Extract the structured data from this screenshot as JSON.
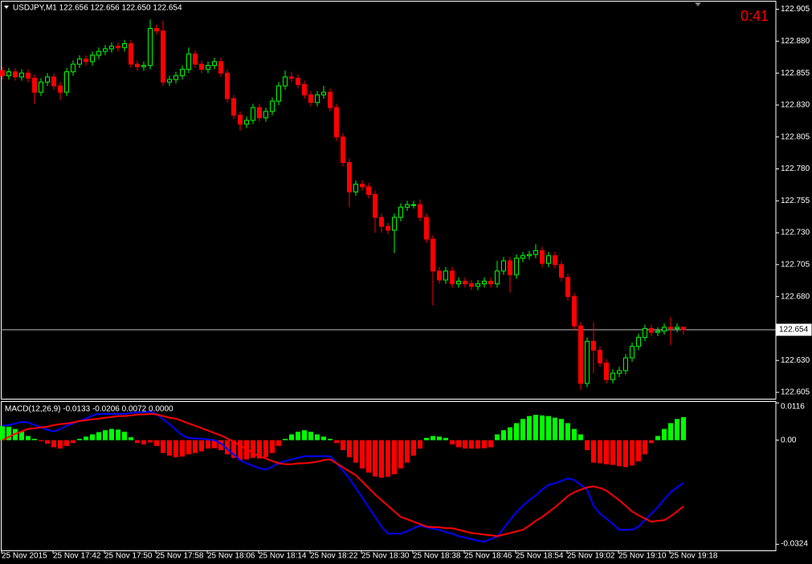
{
  "chart_data": [
    {
      "type": "candlestick",
      "title": "USDJPY,M1  122.656 122.656 122.650 122.654",
      "timer": "0:41",
      "up_color": "#00ff00",
      "down_color": "#ff0000",
      "bid_line_color": "#c0c0c0",
      "ylim": [
        122.6,
        122.911
      ],
      "yticks": [
        122.905,
        {
          "value": 122.88,
          "label": "122.880"
        },
        122.855,
        {
          "value": 122.83,
          "label": "122.830"
        },
        122.805,
        {
          "value": 122.78,
          "label": "122.780"
        },
        122.755,
        {
          "value": 122.73,
          "label": "122.730"
        },
        122.705,
        {
          "value": 122.68,
          "label": "122.680"
        },
        {
          "value": 122.63,
          "label": "122.630"
        },
        122.605
      ],
      "bid": 122.654,
      "open": [
        122.857,
        122.853,
        122.856,
        122.852,
        122.855,
        122.851,
        122.84,
        122.848,
        122.852,
        122.845,
        122.84,
        122.856,
        122.862,
        122.866,
        122.864,
        122.869,
        122.872,
        122.874,
        122.876,
        122.875,
        122.878,
        122.862,
        122.86,
        122.861,
        122.89,
        122.888,
        122.848,
        122.85,
        122.853,
        122.858,
        122.87,
        122.862,
        122.858,
        122.861,
        122.864,
        122.855,
        122.835,
        122.822,
        122.815,
        122.818,
        122.828,
        122.82,
        122.825,
        122.833,
        122.845,
        122.852,
        122.851,
        122.846,
        122.838,
        122.832,
        122.838,
        122.84,
        122.828,
        122.805,
        122.785,
        122.762,
        122.768,
        122.766,
        122.76,
        122.742,
        122.735,
        122.732,
        122.742,
        122.75,
        122.752,
        122.752,
        122.742,
        122.725,
        122.7,
        122.693,
        122.7,
        122.69,
        122.692,
        122.69,
        122.688,
        122.69,
        122.692,
        122.69,
        122.7,
        122.708,
        122.697,
        122.71,
        122.712,
        122.713,
        122.716,
        122.706,
        122.712,
        122.705,
        122.695,
        122.68,
        122.657,
        122.612,
        122.645,
        122.638,
        122.628,
        122.615,
        122.62,
        122.622,
        122.632,
        122.641,
        122.648,
        122.655,
        122.652,
        122.653,
        122.656,
        122.655,
        122.656
      ],
      "high": [
        122.86,
        122.859,
        122.859,
        122.858,
        122.858,
        122.854,
        122.851,
        122.855,
        122.855,
        122.848,
        122.859,
        122.865,
        122.869,
        122.869,
        122.872,
        122.875,
        122.877,
        122.879,
        122.879,
        122.881,
        122.881,
        122.865,
        122.864,
        122.897,
        122.893,
        122.896,
        122.853,
        122.856,
        122.861,
        122.875,
        122.873,
        122.865,
        122.864,
        122.867,
        122.867,
        122.858,
        122.838,
        122.825,
        122.821,
        122.831,
        122.831,
        122.828,
        122.836,
        122.848,
        122.857,
        122.856,
        122.854,
        122.849,
        122.841,
        122.841,
        122.845,
        122.843,
        122.831,
        122.808,
        122.788,
        122.771,
        122.771,
        122.769,
        122.763,
        122.745,
        122.738,
        122.745,
        122.753,
        122.755,
        122.755,
        122.756,
        122.745,
        122.728,
        122.703,
        122.703,
        122.703,
        122.695,
        122.695,
        122.693,
        122.693,
        122.695,
        122.695,
        122.708,
        122.711,
        122.711,
        122.713,
        122.715,
        122.716,
        122.721,
        122.719,
        122.715,
        122.715,
        122.708,
        122.698,
        122.683,
        122.66,
        122.648,
        122.66,
        122.641,
        122.631,
        122.623,
        122.625,
        122.635,
        122.644,
        122.651,
        122.658,
        122.658,
        122.656,
        122.659,
        122.664,
        122.659,
        122.656
      ],
      "low": [
        122.85,
        122.85,
        122.849,
        122.849,
        122.848,
        122.831,
        122.837,
        122.845,
        122.842,
        122.834,
        122.837,
        122.853,
        122.859,
        122.861,
        122.861,
        122.866,
        122.869,
        122.871,
        122.872,
        122.872,
        122.859,
        122.857,
        122.857,
        122.858,
        122.885,
        122.845,
        122.845,
        122.847,
        122.85,
        122.855,
        122.859,
        122.855,
        122.855,
        122.858,
        122.852,
        122.832,
        122.819,
        122.81,
        122.812,
        122.815,
        122.817,
        122.817,
        122.822,
        122.83,
        122.842,
        122.848,
        122.843,
        122.835,
        122.829,
        122.829,
        122.835,
        122.825,
        122.802,
        122.782,
        122.75,
        122.759,
        122.763,
        122.757,
        122.73,
        122.73,
        122.729,
        122.714,
        122.739,
        122.747,
        122.749,
        122.739,
        122.722,
        122.673,
        122.69,
        122.69,
        122.687,
        122.687,
        122.687,
        122.685,
        122.685,
        122.687,
        122.687,
        122.687,
        122.697,
        122.683,
        122.694,
        122.707,
        122.709,
        122.71,
        122.703,
        122.703,
        122.702,
        122.692,
        122.677,
        122.654,
        122.607,
        122.609,
        122.62,
        122.625,
        122.612,
        122.612,
        122.617,
        122.619,
        122.629,
        122.638,
        122.645,
        122.649,
        122.649,
        122.65,
        122.642,
        122.652,
        122.65
      ],
      "close": [
        122.853,
        122.856,
        122.852,
        122.855,
        122.851,
        122.84,
        122.848,
        122.852,
        122.845,
        122.84,
        122.856,
        122.862,
        122.866,
        122.864,
        122.869,
        122.872,
        122.874,
        122.876,
        122.875,
        122.878,
        122.862,
        122.86,
        122.861,
        122.89,
        122.888,
        122.848,
        122.85,
        122.853,
        122.858,
        122.87,
        122.862,
        122.858,
        122.861,
        122.864,
        122.855,
        122.835,
        122.822,
        122.815,
        122.818,
        122.828,
        122.82,
        122.825,
        122.833,
        122.845,
        122.852,
        122.851,
        122.846,
        122.838,
        122.832,
        122.838,
        122.84,
        122.828,
        122.805,
        122.785,
        122.762,
        122.768,
        122.766,
        122.76,
        122.742,
        122.735,
        122.732,
        122.742,
        122.75,
        122.752,
        122.752,
        122.742,
        122.725,
        122.7,
        122.693,
        122.7,
        122.69,
        122.692,
        122.69,
        122.688,
        122.69,
        122.692,
        122.69,
        122.7,
        122.708,
        122.697,
        122.71,
        122.712,
        122.713,
        122.716,
        122.706,
        122.712,
        122.705,
        122.695,
        122.68,
        122.657,
        122.612,
        122.645,
        122.638,
        122.628,
        122.615,
        122.62,
        122.622,
        122.632,
        122.641,
        122.648,
        122.655,
        122.652,
        122.653,
        122.656,
        122.655,
        122.656,
        122.654
      ]
    },
    {
      "type": "macd",
      "title": "MACD(12,26,9) -0.0133 -0.0206 0.0072 0.0000",
      "ylim": [
        -0.0343,
        0.0119
      ],
      "yticks": [
        0.0116,
        {
          "value": 0,
          "label": "0.00"
        },
        -0.0324
      ],
      "categories": [
        "25 Nov 2015",
        null,
        null,
        null,
        null,
        null,
        null,
        null,
        "25 Nov 17:42",
        null,
        null,
        null,
        null,
        null,
        null,
        null,
        "25 Nov 17:50",
        null,
        null,
        null,
        null,
        null,
        null,
        null,
        "25 Nov 17:58",
        null,
        null,
        null,
        null,
        null,
        null,
        null,
        "25 Nov 18:06",
        null,
        null,
        null,
        null,
        null,
        null,
        null,
        "25 Nov 18:14",
        null,
        null,
        null,
        null,
        null,
        null,
        null,
        "25 Nov 18:22",
        null,
        null,
        null,
        null,
        null,
        null,
        null,
        "25 Nov 18:30",
        null,
        null,
        null,
        null,
        null,
        null,
        null,
        "25 Nov 18:38",
        null,
        null,
        null,
        null,
        null,
        null,
        null,
        "25 Nov 18:46",
        null,
        null,
        null,
        null,
        null,
        null,
        null,
        "25 Nov 18:54",
        null,
        null,
        null,
        null,
        null,
        null,
        null,
        "25 Nov 19:02",
        null,
        null,
        null,
        null,
        null,
        null,
        null,
        "25 Nov 19:10",
        null,
        null,
        null,
        null,
        null,
        null,
        null,
        "25 Nov 19:18",
        null,
        null
      ],
      "histogram": {
        "up_color": "#00ff00",
        "down_color": "#ff0000",
        "values": [
          0.0044,
          0.0042,
          0.0035,
          0.0026,
          0.0013,
          0.0004,
          -0.0003,
          -0.0011,
          -0.0022,
          -0.0026,
          -0.0018,
          -0.0009,
          0.0004,
          0.0011,
          0.0018,
          0.0025,
          0.0031,
          0.0035,
          0.0033,
          0.0026,
          0.0009,
          -0.0009,
          -0.0013,
          -0.0007,
          -0.0018,
          -0.004,
          -0.0048,
          -0.0053,
          -0.0051,
          -0.0044,
          -0.004,
          -0.0035,
          -0.0026,
          -0.0025,
          -0.0031,
          -0.0044,
          -0.0055,
          -0.0062,
          -0.006,
          -0.0055,
          -0.0057,
          -0.0053,
          -0.004,
          -0.0018,
          0.0004,
          0.0018,
          0.0026,
          0.0031,
          0.0026,
          0.0018,
          0.0011,
          0.0004,
          -0.0009,
          -0.0031,
          -0.0053,
          -0.007,
          -0.0088,
          -0.0101,
          -0.0113,
          -0.0117,
          -0.0114,
          -0.0106,
          -0.0088,
          -0.007,
          -0.0048,
          -0.0026,
          0.0007,
          0.0013,
          0.0011,
          0.0007,
          -0.0013,
          -0.0022,
          -0.0026,
          -0.0026,
          -0.0026,
          -0.0025,
          -0.0022,
          0.0018,
          0.0031,
          0.004,
          0.0053,
          0.0066,
          0.0075,
          0.0079,
          0.0077,
          0.0075,
          0.007,
          0.0066,
          0.0053,
          0.0035,
          0.0018,
          -0.0031,
          -0.007,
          -0.0072,
          -0.0075,
          -0.0077,
          -0.0081,
          -0.0084,
          -0.0079,
          -0.0066,
          -0.0044,
          -0.0009,
          0.0013,
          0.0035,
          0.0053,
          0.0066,
          0.0072
        ]
      },
      "series": [
        {
          "color": "#0000ff",
          "values": [
            0.0045,
            0.0047,
            0.0052,
            0.0057,
            0.0055,
            0.0047,
            0.004,
            0.0032,
            0.0027,
            0.0035,
            0.0045,
            0.0052,
            0.006,
            0.0067,
            0.0077,
            0.0082,
            0.0082,
            0.0082,
            0.0082,
            0.0082,
            0.0085,
            0.0087,
            0.0087,
            0.009,
            0.0082,
            0.0065,
            0.005,
            0.0032,
            0.0015,
            0.0007,
            0.0005,
            0.0005,
            0.0002,
            0,
            -0.001,
            -0.0027,
            -0.0045,
            -0.0062,
            -0.0072,
            -0.008,
            -0.0087,
            -0.0092,
            -0.0082,
            -0.0072,
            -0.0065,
            -0.006,
            -0.0055,
            -0.005,
            -0.005,
            -0.005,
            -0.005,
            -0.005,
            -0.0072,
            -0.0095,
            -0.0119,
            -0.0149,
            -0.0179,
            -0.0209,
            -0.0239,
            -0.0269,
            -0.0291,
            -0.0291,
            -0.0291,
            -0.0284,
            -0.0274,
            -0.0266,
            -0.0271,
            -0.0276,
            -0.0279,
            -0.0286,
            -0.0291,
            -0.0299,
            -0.0303,
            -0.0308,
            -0.0313,
            -0.0316,
            -0.0308,
            -0.0301,
            -0.0274,
            -0.0249,
            -0.0224,
            -0.0204,
            -0.0187,
            -0.0172,
            -0.0154,
            -0.0139,
            -0.0134,
            -0.0127,
            -0.0119,
            -0.0124,
            -0.0139,
            -0.0154,
            -0.0204,
            -0.0229,
            -0.0244,
            -0.0261,
            -0.0279,
            -0.0279,
            -0.0279,
            -0.0269,
            -0.0249,
            -0.0229,
            -0.0209,
            -0.0184,
            -0.0162,
            -0.0147,
            -0.0133
          ]
        },
        {
          "color": "#ff0000",
          "values": [
            0,
            0.001,
            0.002,
            0.0027,
            0.0035,
            0.0037,
            0.004,
            0.0042,
            0.0047,
            0.005,
            0.0052,
            0.0055,
            0.006,
            0.0062,
            0.0065,
            0.0067,
            0.007,
            0.0072,
            0.0075,
            0.0075,
            0.0077,
            0.008,
            0.008,
            0.0082,
            0.008,
            0.0075,
            0.007,
            0.0067,
            0.006,
            0.0052,
            0.0045,
            0.0037,
            0.003,
            0.0022,
            0.0015,
            0.0005,
            -0.0005,
            -0.0017,
            -0.0027,
            -0.004,
            -0.005,
            -0.0057,
            -0.0065,
            -0.0072,
            -0.0075,
            -0.0075,
            -0.0072,
            -0.0072,
            -0.007,
            -0.0067,
            -0.0062,
            -0.006,
            -0.0072,
            -0.0085,
            -0.0097,
            -0.0109,
            -0.0129,
            -0.0149,
            -0.0169,
            -0.0187,
            -0.0204,
            -0.0222,
            -0.0239,
            -0.0246,
            -0.0254,
            -0.0261,
            -0.0269,
            -0.0271,
            -0.0271,
            -0.0274,
            -0.0274,
            -0.0279,
            -0.0284,
            -0.0289,
            -0.0291,
            -0.0294,
            -0.0296,
            -0.0299,
            -0.0294,
            -0.0289,
            -0.0284,
            -0.0279,
            -0.0266,
            -0.0251,
            -0.0239,
            -0.0224,
            -0.0209,
            -0.0192,
            -0.0174,
            -0.0162,
            -0.0154,
            -0.0147,
            -0.0144,
            -0.0149,
            -0.0157,
            -0.0172,
            -0.0187,
            -0.0204,
            -0.0222,
            -0.0234,
            -0.0244,
            -0.0254,
            -0.0251,
            -0.0249,
            -0.0237,
            -0.0222,
            -0.0206
          ]
        }
      ]
    }
  ]
}
